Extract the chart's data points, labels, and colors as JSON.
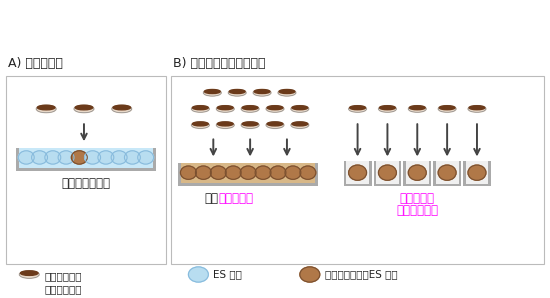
{
  "title_A": "A) 従来の方法",
  "title_B": "B) 改良型遺伝子導入方法",
  "bg_color": "#ffffff",
  "panel_bg": "#ffffff",
  "panel_edge": "#bbbbbb",
  "plasmid_top_color": "#6B3A1A",
  "plasmid_bottom_color": "#e8d8c8",
  "es_cell_light_color": "#b8ddf0",
  "es_cell_light_edge": "#88bbdd",
  "es_cell_dark_color": "#b07848",
  "es_cell_dark_edge": "#7a5030",
  "tray_outer_color": "#aaaaaa",
  "tray_fill_color": "#c8e8f8",
  "tray_fill_dark": "#d8b888",
  "tray_wall_color": "#999999",
  "arrow_color": "#444444",
  "text_black": "#222222",
  "text_magenta": "#ff00ff",
  "legend_label1": "プラスミドと\n試薬の複合体",
  "legend_label2": "ES 細胞",
  "legend_label3": "プラスミド導入ES 細胞",
  "label_A_bottom": "導入効率が低い",
  "label_B1_black": "導入",
  "label_B1_magenta": "効率が高い",
  "label_B2_line1": "簡単に安く",
  "label_B2_line2": "多種類の導入"
}
